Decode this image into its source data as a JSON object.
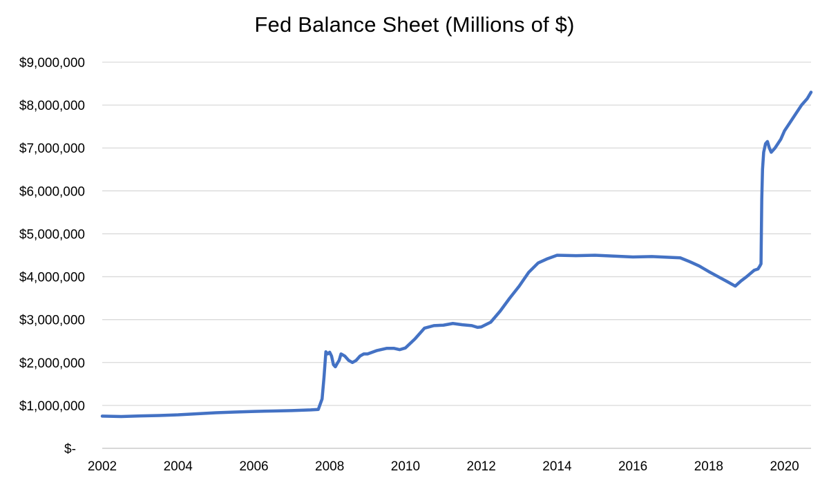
{
  "chart_data": {
    "type": "line",
    "title": "Fed Balance Sheet (Millions of $)",
    "xlabel": "",
    "ylabel": "",
    "xlim": [
      2002,
      2020.7
    ],
    "ylim": [
      0,
      9000000
    ],
    "grid": true,
    "legend": "none",
    "x_ticks": [
      {
        "value": 2002,
        "label": "2002"
      },
      {
        "value": 2004,
        "label": "2004"
      },
      {
        "value": 2006,
        "label": "2006"
      },
      {
        "value": 2008,
        "label": "2008"
      },
      {
        "value": 2010,
        "label": "2010"
      },
      {
        "value": 2012,
        "label": "2012"
      },
      {
        "value": 2014,
        "label": "2014"
      },
      {
        "value": 2016,
        "label": "2016"
      },
      {
        "value": 2018,
        "label": "2018"
      },
      {
        "value": 2020,
        "label": "2020"
      }
    ],
    "y_ticks": [
      {
        "value": 0,
        "label": "$-"
      },
      {
        "value": 1000000,
        "label": "$1,000,000"
      },
      {
        "value": 2000000,
        "label": "$2,000,000"
      },
      {
        "value": 3000000,
        "label": "$3,000,000"
      },
      {
        "value": 4000000,
        "label": "$4,000,000"
      },
      {
        "value": 5000000,
        "label": "$5,000,000"
      },
      {
        "value": 6000000,
        "label": "$6,000,000"
      },
      {
        "value": 7000000,
        "label": "$7,000,000"
      },
      {
        "value": 8000000,
        "label": "$8,000,000"
      },
      {
        "value": 9000000,
        "label": "$9,000,000"
      }
    ],
    "series": [
      {
        "color": "#4472c4",
        "x": [
          2002.0,
          2002.5,
          2003.0,
          2003.5,
          2004.0,
          2004.5,
          2005.0,
          2005.5,
          2006.0,
          2006.5,
          2007.0,
          2007.5,
          2007.7,
          2007.8,
          2007.85,
          2007.9,
          2007.95,
          2008.0,
          2008.05,
          2008.1,
          2008.15,
          2008.2,
          2008.25,
          2008.3,
          2008.4,
          2008.5,
          2008.6,
          2008.7,
          2008.8,
          2008.9,
          2009.0,
          2009.25,
          2009.5,
          2009.7,
          2009.85,
          2010.0,
          2010.25,
          2010.5,
          2010.75,
          2011.0,
          2011.25,
          2011.5,
          2011.75,
          2011.9,
          2012.0,
          2012.25,
          2012.5,
          2012.75,
          2013.0,
          2013.25,
          2013.5,
          2013.75,
          2014.0,
          2014.5,
          2015.0,
          2015.5,
          2016.0,
          2016.5,
          2017.0,
          2017.25,
          2017.5,
          2017.75,
          2018.0,
          2018.25,
          2018.5,
          2018.7,
          2018.85,
          2019.0,
          2019.2,
          2019.3,
          2019.35,
          2019.38,
          2019.4,
          2019.42,
          2019.45,
          2019.5,
          2019.55,
          2019.6,
          2019.65,
          2019.75,
          2019.9,
          2020.0,
          2020.15,
          2020.3,
          2020.45,
          2020.6,
          2020.7
        ],
        "y": [
          750000,
          740000,
          755000,
          765000,
          780000,
          805000,
          830000,
          845000,
          860000,
          870000,
          880000,
          895000,
          905000,
          1150000,
          1650000,
          2250000,
          2200000,
          2240000,
          2150000,
          1950000,
          1900000,
          1980000,
          2050000,
          2200000,
          2150000,
          2050000,
          2000000,
          2050000,
          2150000,
          2200000,
          2200000,
          2280000,
          2330000,
          2330000,
          2300000,
          2340000,
          2550000,
          2800000,
          2860000,
          2870000,
          2910000,
          2880000,
          2860000,
          2820000,
          2830000,
          2940000,
          3200000,
          3500000,
          3780000,
          4100000,
          4320000,
          4420000,
          4500000,
          4490000,
          4500000,
          4480000,
          4460000,
          4470000,
          4450000,
          4440000,
          4350000,
          4250000,
          4120000,
          4000000,
          3880000,
          3780000,
          3900000,
          4000000,
          4150000,
          4180000,
          4250000,
          4300000,
          5800000,
          6500000,
          6900000,
          7100000,
          7150000,
          7000000,
          6900000,
          7000000,
          7200000,
          7400000,
          7600000,
          7800000,
          8000000,
          8150000,
          8300000
        ]
      }
    ]
  }
}
